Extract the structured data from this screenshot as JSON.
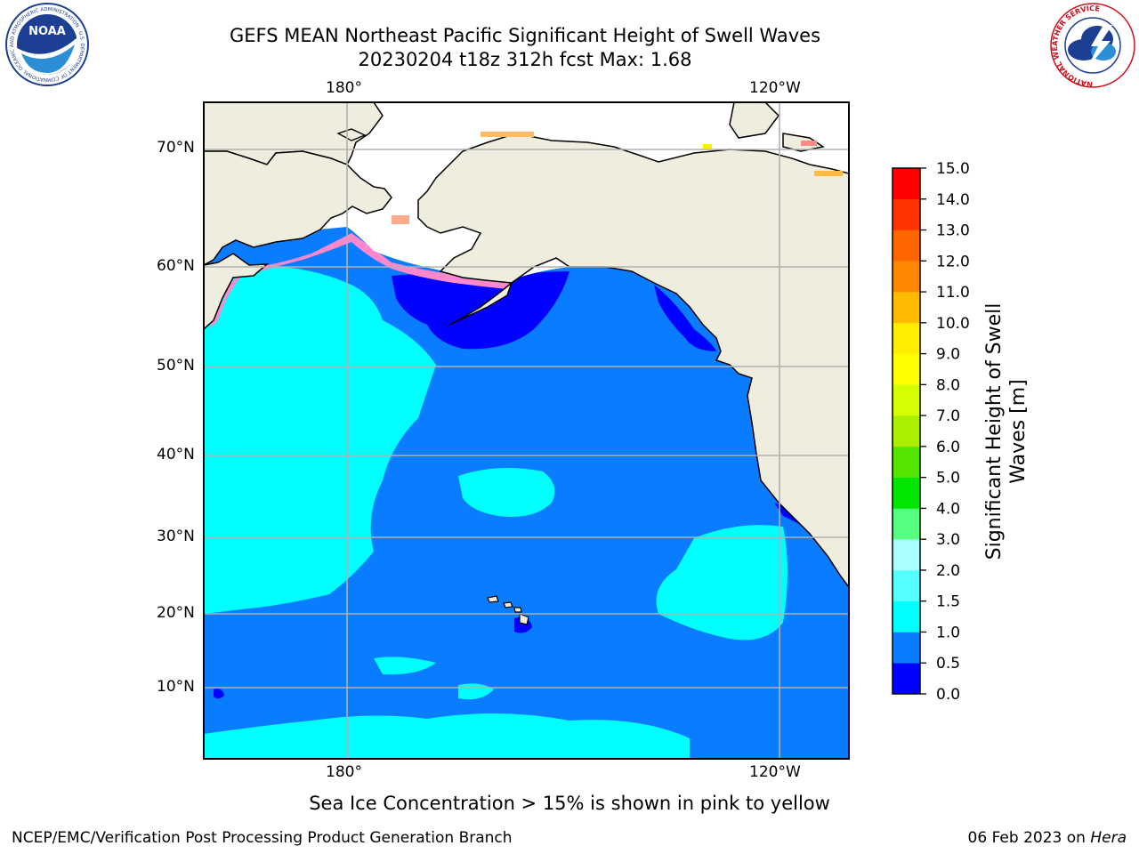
{
  "title": {
    "line1": "GEFS MEAN Northeast Pacific Significant Height of Swell Waves",
    "line2": "20230204 t18z 312h fcst   Max: 1.68"
  },
  "logos": {
    "left": "NOAA",
    "left_ring": "NATIONAL OCEANIC AND ATMOSPHERIC ADMINISTRATION · U.S. DEPARTMENT OF COMMERCE",
    "right_ring": "NATIONAL WEATHER SERVICE"
  },
  "map": {
    "lon_labels_top": [
      "180°",
      "120°W"
    ],
    "lon_labels_bottom": [
      "180°",
      "120°W"
    ],
    "lat_labels": [
      "70°N",
      "60°N",
      "50°N",
      "40°N",
      "30°N",
      "20°N",
      "10°N"
    ],
    "colors": {
      "land": "#efedde",
      "ocean_main": "#0a7cff",
      "ocean_swell": "#00ffff",
      "ocean_low": "#0000ff",
      "grid": "#b0b0b0"
    }
  },
  "colorbar": {
    "label": "Significant Height of Swell Waves [m]",
    "label_line1": "Significant Height of Swell",
    "label_line2": "Waves [m]",
    "ticks": [
      "15.0",
      "14.0",
      "13.0",
      "12.0",
      "11.0",
      "10.0",
      "9.0",
      "8.0",
      "7.0",
      "6.0",
      "5.0",
      "4.0",
      "3.0",
      "2.0",
      "1.5",
      "1.0",
      "0.5",
      "0.0"
    ],
    "colors": [
      "#0000ff",
      "#0a7cff",
      "#00ffff",
      "#55ffff",
      "#aaffff",
      "#55ff7f",
      "#00e600",
      "#55e600",
      "#aaee00",
      "#d4ff00",
      "#ffff00",
      "#ffee00",
      "#ffbb00",
      "#ff8800",
      "#ff6600",
      "#ff3300",
      "#ff0000"
    ]
  },
  "note": "Sea Ice Concentration > 15% is shown in pink to yellow",
  "footer": {
    "left": "NCEP/EMC/Verification Post Processing Product Generation Branch",
    "right_date": "06 Feb 2023 on ",
    "right_machine": "Hera"
  }
}
